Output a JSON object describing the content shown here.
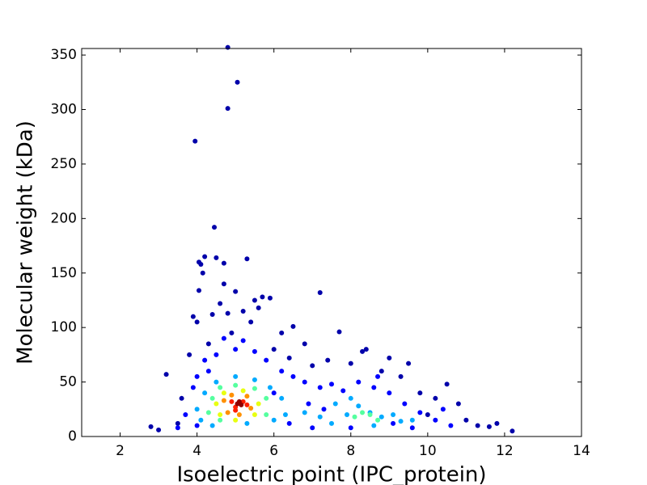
{
  "chart_data": {
    "type": "scatter",
    "xlabel": "Isoelectric point (IPC_protein)",
    "ylabel": "Molecular weight (kDa)",
    "xlim": [
      1,
      14
    ],
    "xticks": [
      2,
      4,
      6,
      8,
      10,
      12,
      14
    ],
    "ylim": [
      0,
      356
    ],
    "yticks": [
      0,
      50,
      100,
      150,
      200,
      250,
      300,
      350
    ],
    "series": [
      {
        "color": "#0000aa",
        "x": [
          4.8,
          5.05,
          4.8,
          3.95,
          4.45,
          4.05,
          4.1,
          4.2,
          4.5,
          4.7,
          5.3,
          4.15,
          4.05,
          4.7,
          5.0,
          7.2,
          5.5,
          5.7,
          5.9,
          3.9,
          4.0,
          4.4,
          4.8,
          5.6,
          6.2,
          6.5,
          7.7,
          8.3,
          8.4,
          9.0,
          9.5,
          10.5,
          11.3,
          11.6,
          12.2,
          2.8,
          3.0,
          3.2,
          3.5,
          11.0,
          10.8,
          10.2,
          6.8,
          7.4,
          6.0,
          4.3,
          3.8,
          8.8,
          9.3,
          7.0,
          5.4,
          4.9,
          11.8,
          10.0,
          6.4,
          8.0,
          4.6,
          5.2,
          3.6,
          9.8
        ],
        "values": [
          357,
          325,
          301,
          271,
          192,
          160,
          158,
          165,
          164,
          159,
          163,
          150,
          134,
          140,
          133,
          132,
          125,
          128,
          127,
          110,
          105,
          112,
          113,
          118,
          95,
          101,
          96,
          78,
          80,
          72,
          67,
          48,
          10,
          9,
          5,
          9,
          6,
          57,
          12,
          15,
          30,
          35,
          85,
          70,
          80,
          85,
          75,
          60,
          55,
          65,
          105,
          95,
          12,
          20,
          72,
          67,
          122,
          115,
          35,
          40
        ]
      },
      {
        "color": "#0000ff",
        "x": [
          4.2,
          4.5,
          5.0,
          5.5,
          5.8,
          6.2,
          6.5,
          6.8,
          7.2,
          7.5,
          7.8,
          8.2,
          8.6,
          9.0,
          9.4,
          9.8,
          10.2,
          10.6,
          3.7,
          3.9,
          4.0,
          4.3,
          6.0,
          6.9,
          7.3,
          9.1,
          9.6,
          10.4,
          3.5,
          4.0,
          6.4,
          7.0,
          8.0,
          8.7,
          5.2,
          4.7
        ],
        "values": [
          70,
          75,
          80,
          78,
          70,
          60,
          55,
          50,
          45,
          48,
          42,
          50,
          45,
          40,
          30,
          22,
          15,
          10,
          20,
          45,
          55,
          60,
          40,
          30,
          25,
          12,
          8,
          25,
          8,
          10,
          12,
          8,
          8,
          55,
          88,
          90
        ]
      },
      {
        "color": "#00aaff",
        "x": [
          4.2,
          4.5,
          5.0,
          5.5,
          5.9,
          6.2,
          4.0,
          4.1,
          6.3,
          6.8,
          7.2,
          7.6,
          7.9,
          8.2,
          8.5,
          8.8,
          9.1,
          9.3,
          8.0,
          7.5,
          8.6,
          9.6,
          5.3,
          4.4,
          6.0
        ],
        "values": [
          40,
          50,
          55,
          52,
          45,
          35,
          25,
          15,
          20,
          22,
          18,
          30,
          20,
          28,
          22,
          18,
          20,
          14,
          35,
          12,
          10,
          15,
          12,
          10,
          15
        ]
      },
      {
        "color": "#55ff9f",
        "x": [
          4.4,
          4.6,
          5.0,
          5.5,
          5.8,
          4.3,
          4.6,
          5.8,
          8.3,
          8.5,
          8.1,
          8.7
        ],
        "values": [
          35,
          45,
          47,
          44,
          35,
          22,
          15,
          20,
          22,
          20,
          18,
          15
        ]
      },
      {
        "color": "#e8ff10",
        "x": [
          4.5,
          4.7,
          5.2,
          5.6,
          4.6,
          5.5,
          5.0
        ],
        "values": [
          30,
          40,
          42,
          30,
          20,
          20,
          15
        ]
      },
      {
        "color": "#ff9000",
        "x": [
          4.7,
          4.9,
          5.3,
          5.4,
          4.8,
          5.1
        ],
        "values": [
          33,
          38,
          37,
          26,
          22,
          20
        ]
      },
      {
        "color": "#ff2000",
        "x": [
          4.9,
          5.0,
          5.2,
          5.3,
          5.0
        ],
        "values": [
          32,
          27,
          32,
          29,
          24
        ]
      },
      {
        "color": "#900000",
        "x": [
          5.05,
          5.15,
          5.1
        ],
        "values": [
          30,
          29,
          32
        ]
      }
    ]
  }
}
